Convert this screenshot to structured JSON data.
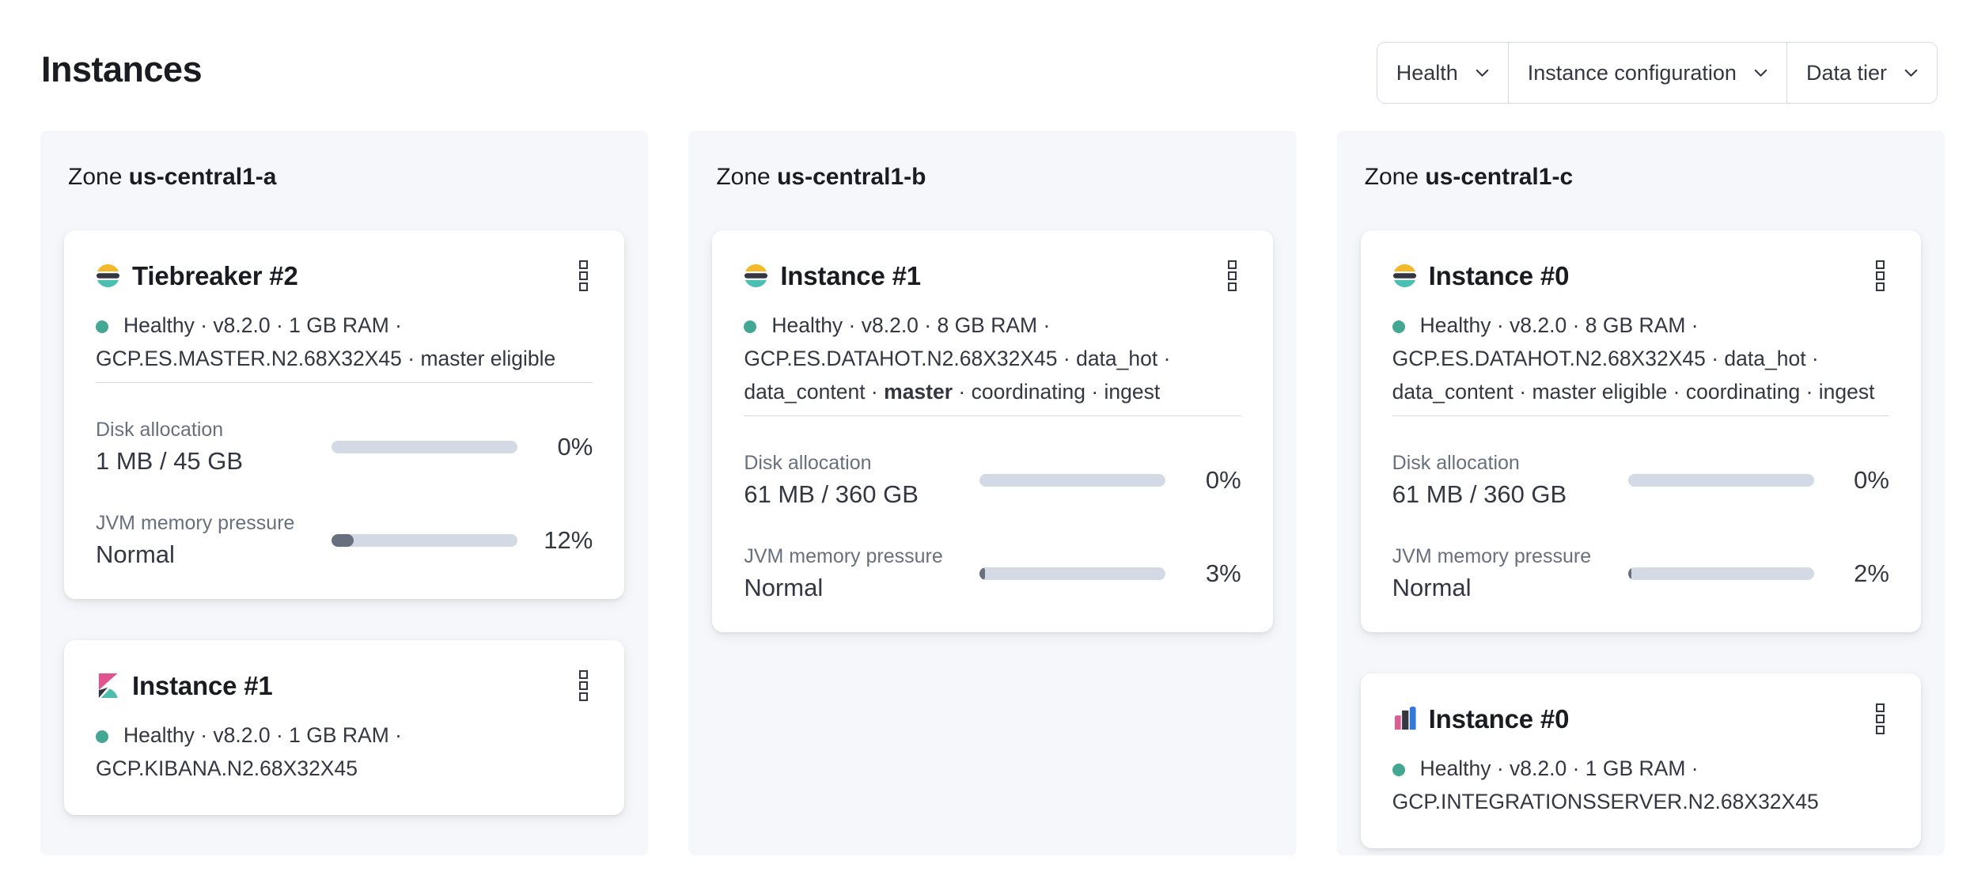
{
  "page": {
    "title": "Instances"
  },
  "filters": {
    "buttons": [
      {
        "label": "Health"
      },
      {
        "label": "Instance configuration"
      },
      {
        "label": "Data tier"
      }
    ]
  },
  "colors": {
    "healthy_dot": "#43a794",
    "bar_track": "#d3dae6",
    "bar_fill": "#69707d",
    "panel_bg": "#f5f7fa",
    "heading_text": "#1a1c21",
    "body_text": "#343741",
    "subdued_text": "#69707d",
    "border": "#d3dae6",
    "logo_elasticsearch": {
      "yellow": "#f2ba2a",
      "dark": "#343741",
      "teal": "#49c0b2"
    },
    "logo_kibana": {
      "pink": "#e0538f",
      "dark": "#30353f",
      "teal": "#4cbdae"
    },
    "logo_integrations_server": {
      "pink": "#d95e92",
      "dark": "#343741",
      "blue": "#3279da"
    }
  },
  "zones": [
    {
      "prefix": "Zone",
      "name": "us-central1-a",
      "cards": [
        {
          "logo_icon": "elasticsearch",
          "title": "Tiebreaker #2",
          "status_lines": [
            [
              {
                "text": "Healthy · v8.2.0 · 1 GB RAM ·"
              }
            ],
            [
              {
                "text": "GCP.ES.MASTER.N2.68X32X45 · master eligible"
              }
            ]
          ],
          "metrics": [
            {
              "label": "Disk allocation",
              "value": "1 MB / 45 GB",
              "percent": "0%",
              "fill_percent": 0
            },
            {
              "label": "JVM memory pressure",
              "value": "Normal",
              "percent": "12%",
              "fill_percent": 12
            }
          ]
        },
        {
          "logo_icon": "kibana",
          "title": "Instance #1",
          "status_lines": [
            [
              {
                "text": "Healthy · v8.2.0 · 1 GB RAM ·"
              }
            ],
            [
              {
                "text": "GCP.KIBANA.N2.68X32X45"
              }
            ]
          ]
        }
      ]
    },
    {
      "prefix": "Zone",
      "name": "us-central1-b",
      "cards": [
        {
          "logo_icon": "elasticsearch",
          "title": "Instance #1",
          "status_lines": [
            [
              {
                "text": "Healthy · v8.2.0 · 8 GB RAM ·"
              }
            ],
            [
              {
                "text": "GCP.ES.DATAHOT.N2.68X32X45 · data_hot ·"
              }
            ],
            [
              {
                "text": "data_content · "
              },
              {
                "text": "master",
                "bold": true
              },
              {
                "text": " · coordinating · ingest"
              }
            ]
          ],
          "metrics": [
            {
              "label": "Disk allocation",
              "value": "61 MB / 360 GB",
              "percent": "0%",
              "fill_percent": 0
            },
            {
              "label": "JVM memory pressure",
              "value": "Normal",
              "percent": "3%",
              "fill_percent": 3
            }
          ]
        }
      ]
    },
    {
      "prefix": "Zone",
      "name": "us-central1-c",
      "cards": [
        {
          "logo_icon": "elasticsearch",
          "title": "Instance #0",
          "status_lines": [
            [
              {
                "text": "Healthy · v8.2.0 · 8 GB RAM ·"
              }
            ],
            [
              {
                "text": "GCP.ES.DATAHOT.N2.68X32X45 · data_hot ·"
              }
            ],
            [
              {
                "text": "data_content · master eligible · coordinating · ingest"
              }
            ]
          ],
          "metrics": [
            {
              "label": "Disk allocation",
              "value": "61 MB / 360 GB",
              "percent": "0%",
              "fill_percent": 0
            },
            {
              "label": "JVM memory pressure",
              "value": "Normal",
              "percent": "2%",
              "fill_percent": 2
            }
          ]
        },
        {
          "logo_icon": "integrations-server",
          "title": "Instance #0",
          "status_lines": [
            [
              {
                "text": "Healthy · v8.2.0 · 1 GB RAM ·"
              }
            ],
            [
              {
                "text": "GCP.INTEGRATIONSSERVER.N2.68X32X45"
              }
            ]
          ]
        }
      ]
    }
  ]
}
